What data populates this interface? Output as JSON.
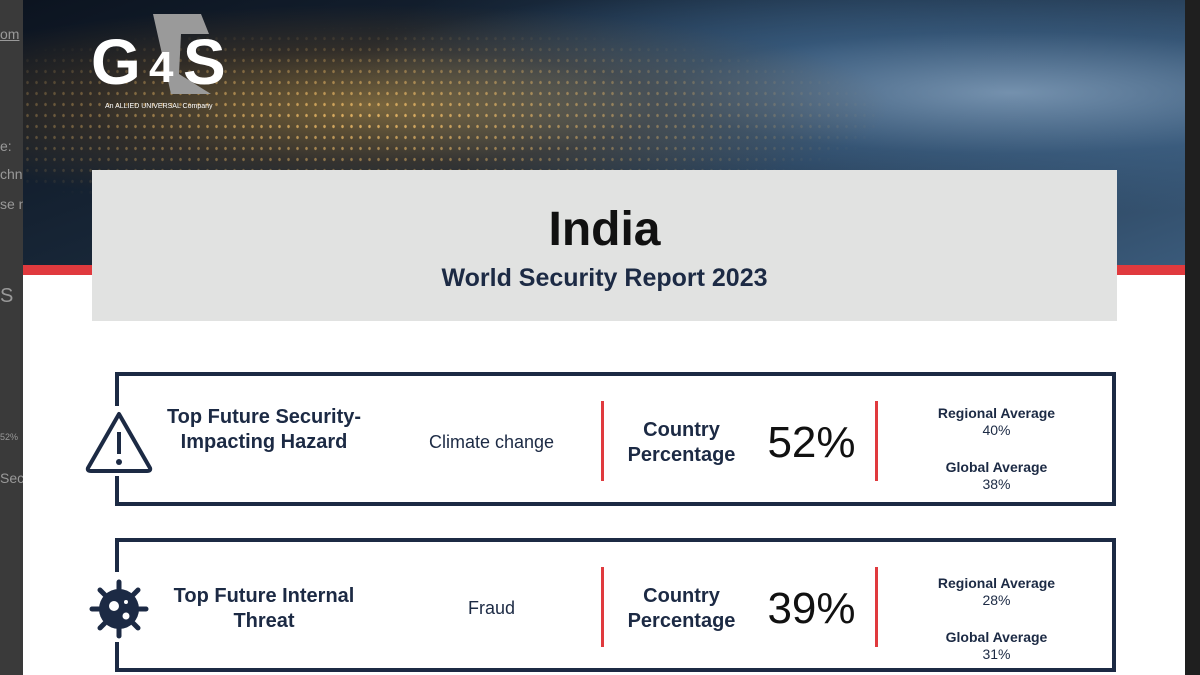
{
  "background_fragments": [
    "om",
    "e:",
    "chn",
    "se n",
    "S",
    "52%",
    "Sec"
  ],
  "logo": {
    "text": "G4S",
    "tagline": "An ALLIED UNIVERSAL Company"
  },
  "header": {
    "title": "India",
    "subtitle": "World Security Report 2023"
  },
  "colors": {
    "navy": "#1c2a44",
    "accent_red": "#e03a3e",
    "title_box": "#e1e2e1"
  },
  "cards": [
    {
      "icon": "warning-triangle-icon",
      "label": "Top Future Security-Impacting Hazard",
      "value": "Climate change",
      "country_label": "Country Percentage",
      "country_pct": "52%",
      "regional_label": "Regional Average",
      "regional_pct": "40%",
      "global_label": "Global Average",
      "global_pct": "38%"
    },
    {
      "icon": "virus-icon",
      "label": "Top Future Internal Threat",
      "value": "Fraud",
      "country_label": "Country Percentage",
      "country_pct": "39%",
      "regional_label": "Regional Average",
      "regional_pct": "28%",
      "global_label": "Global Average",
      "global_pct": "31%"
    }
  ]
}
